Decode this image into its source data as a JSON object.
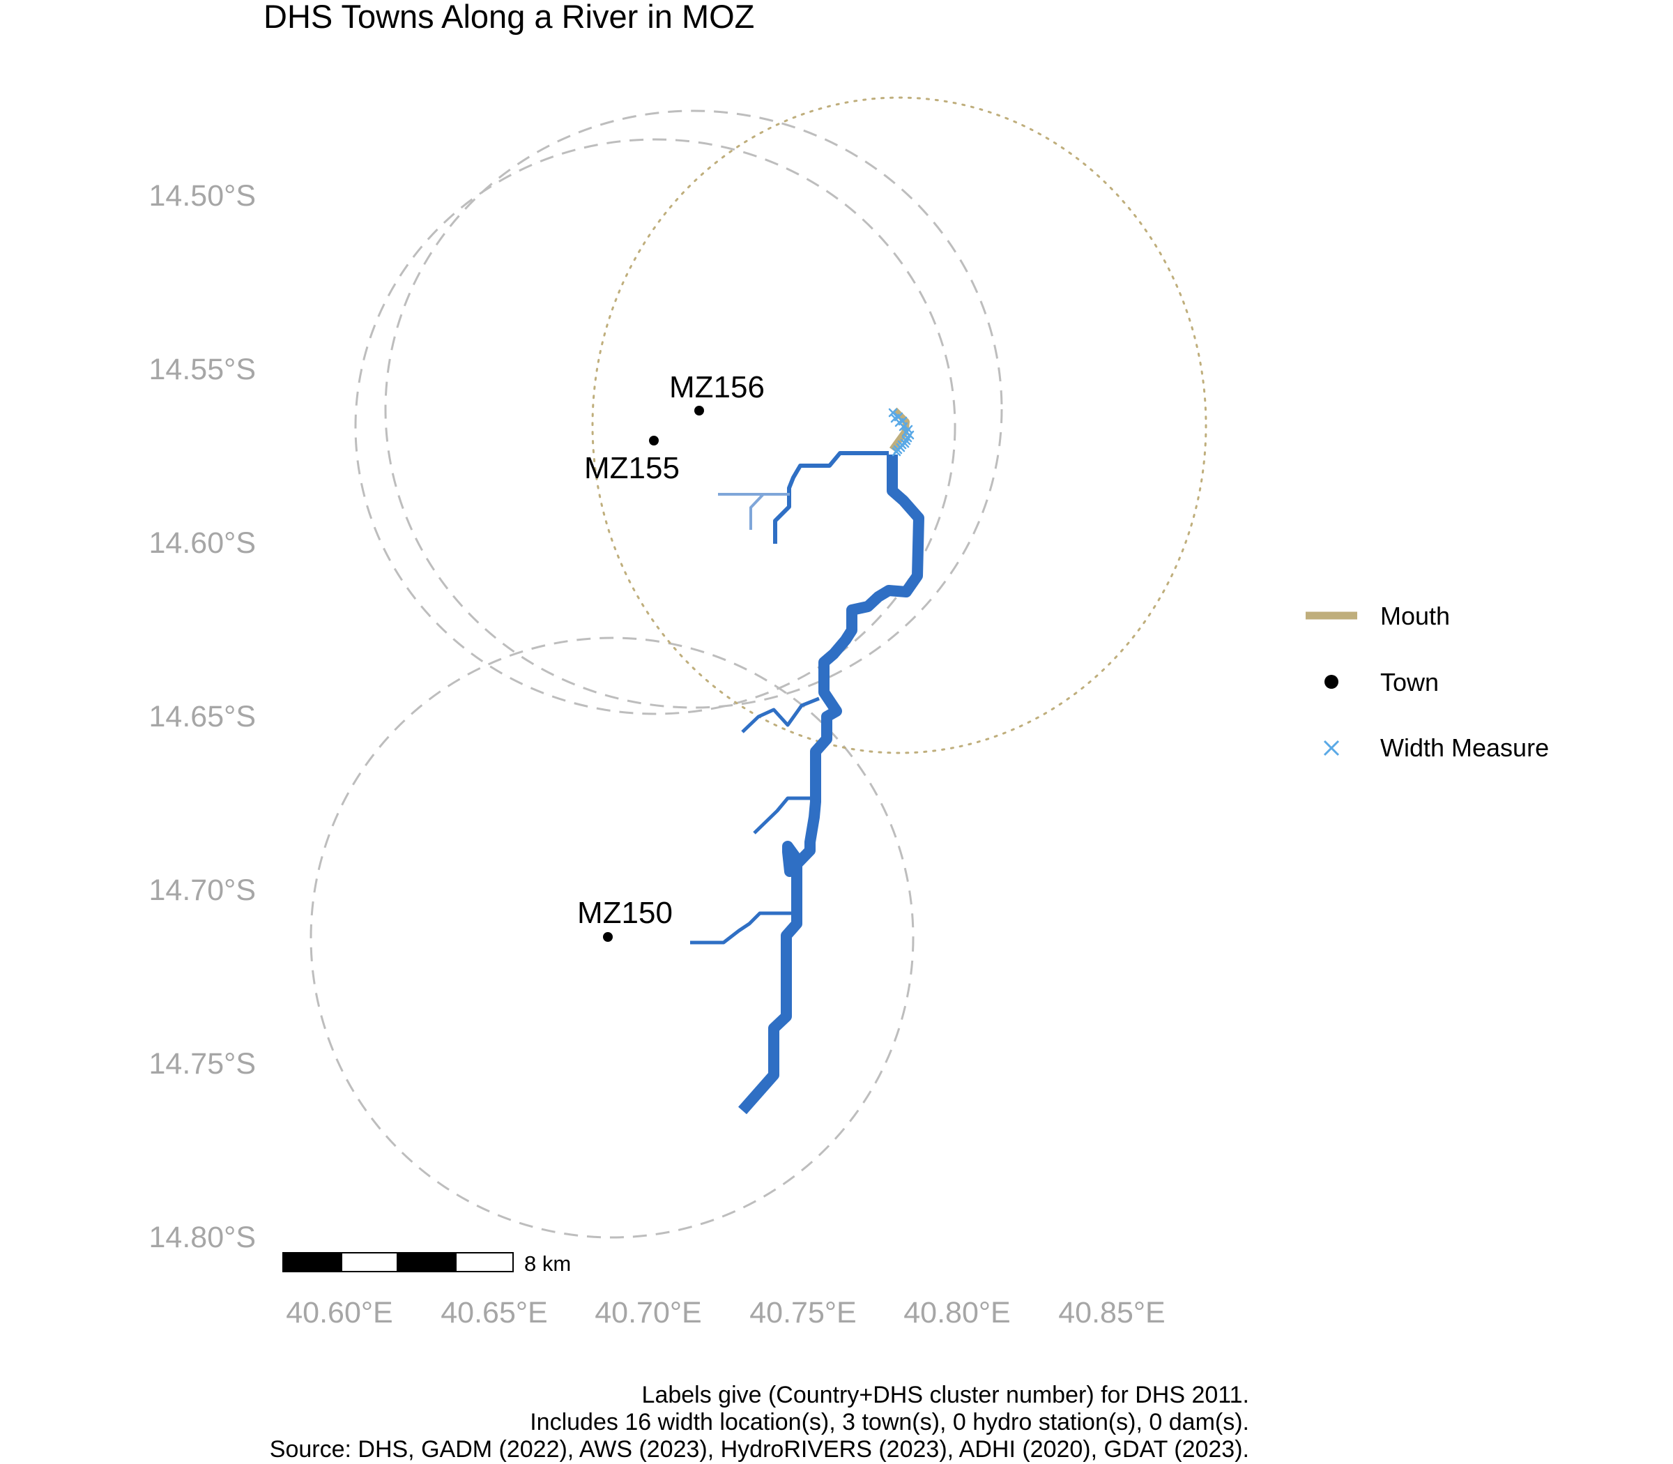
{
  "title": "DHS Towns Along a River in MOZ",
  "axes": {
    "x_ticks": [
      "40.60°E",
      "40.65°E",
      "40.70°E",
      "40.75°E",
      "40.80°E",
      "40.85°E"
    ],
    "y_ticks": [
      "14.50°S",
      "14.55°S",
      "14.60°S",
      "14.65°S",
      "14.70°S",
      "14.75°S",
      "14.80°S"
    ]
  },
  "towns": [
    {
      "id": "MZ156",
      "label": "MZ156",
      "lon": 40.713,
      "lat": -14.562
    },
    {
      "id": "MZ155",
      "label": "MZ155",
      "lon": 40.704,
      "lat": -14.571
    },
    {
      "id": "MZ150",
      "label": "MZ150",
      "lon": 40.686,
      "lat": -14.714
    }
  ],
  "legend": {
    "items": [
      {
        "label": "Mouth",
        "color": "#bfae7c",
        "symbol": "line"
      },
      {
        "label": "Town",
        "color": "#000000",
        "symbol": "point"
      },
      {
        "label": "Width Measure",
        "color": "#5aa9e6",
        "symbol": "cross"
      }
    ]
  },
  "scale_bar": {
    "label": "8 km"
  },
  "caption": [
    "Labels give (Country+DHS cluster number) for DHS 2011.",
    "Includes 16 width location(s), 3 town(s), 0 hydro station(s), 0 dam(s).",
    "Source: DHS, GADM (2022), AWS (2023), HydroRIVERS (2023), ADHI (2020), GDAT (2023)."
  ],
  "colors": {
    "river": "#2f6fc4",
    "river_minor": "#7fa6d9",
    "mouth": "#bfae7c",
    "buffer": "#bdbdbd",
    "width_measure": "#5aa9e6",
    "tick": "#a6a6a6"
  }
}
